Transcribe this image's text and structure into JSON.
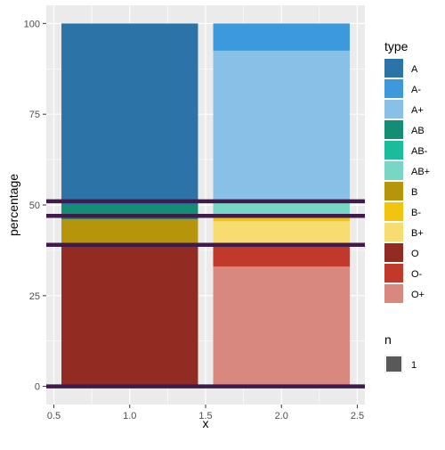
{
  "chart_data": {
    "type": "bar",
    "xlabel": "x",
    "ylabel": "percentage",
    "xlim": [
      0.45,
      2.55
    ],
    "ylim": [
      -5,
      105
    ],
    "x_ticks": [
      "0.5",
      "1.0",
      "1.5",
      "2.0",
      "2.5"
    ],
    "y_ticks": [
      "0",
      "25",
      "50",
      "75",
      "100"
    ],
    "x_tick_values": [
      0.5,
      1.0,
      1.5,
      2.0,
      2.5
    ],
    "y_tick_values": [
      0,
      25,
      50,
      75,
      100
    ],
    "grid": true,
    "bar_width": 0.9,
    "bars": [
      {
        "x": 1,
        "segments": [
          {
            "type": "O",
            "from": 0,
            "to": 39
          },
          {
            "type": "B",
            "from": 39,
            "to": 46
          },
          {
            "type": "AB",
            "from": 46,
            "to": 50
          },
          {
            "type": "A",
            "from": 50,
            "to": 100
          }
        ]
      },
      {
        "x": 2,
        "segments": [
          {
            "type": "O+",
            "from": 0,
            "to": 33
          },
          {
            "type": "O-",
            "from": 33,
            "to": 39
          },
          {
            "type": "B+",
            "from": 39,
            "to": 45.5
          },
          {
            "type": "B-",
            "from": 45.5,
            "to": 47
          },
          {
            "type": "AB+",
            "from": 47,
            "to": 50.5
          },
          {
            "type": "AB-",
            "from": 50.5,
            "to": 51
          },
          {
            "type": "A+",
            "from": 51,
            "to": 92.5
          },
          {
            "type": "A-",
            "from": 92.5,
            "to": 100
          }
        ]
      }
    ],
    "hlines": [
      0,
      39,
      47,
      51
    ],
    "hline_color": "#3f1a4a",
    "legend_position": "right",
    "legend": {
      "title": "type",
      "entries": [
        {
          "label": "A",
          "color": "#2c74a8"
        },
        {
          "label": "A-",
          "color": "#3b99dc"
        },
        {
          "label": "A+",
          "color": "#88c0e8"
        },
        {
          "label": "AB",
          "color": "#138d75"
        },
        {
          "label": "AB-",
          "color": "#1abc9c"
        },
        {
          "label": "AB+",
          "color": "#76d7c4"
        },
        {
          "label": "B",
          "color": "#b7950b"
        },
        {
          "label": "B-",
          "color": "#f1c40f"
        },
        {
          "label": "B+",
          "color": "#f7dc6f"
        },
        {
          "label": "O",
          "color": "#922b21"
        },
        {
          "label": "O-",
          "color": "#c0392b"
        },
        {
          "label": "O+",
          "color": "#d98880"
        }
      ]
    },
    "size_legend": {
      "title": "n",
      "entries": [
        {
          "label": "1",
          "color": "#595959"
        }
      ]
    }
  }
}
